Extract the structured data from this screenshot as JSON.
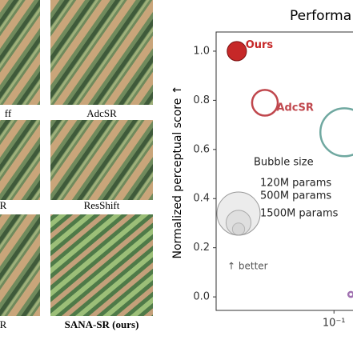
{
  "panels": [
    {
      "label": "ff"
    },
    {
      "label": "AdcSR"
    },
    {
      "label": "R"
    },
    {
      "label": "ResShift"
    },
    {
      "label": "R"
    },
    {
      "label": "SANA-SR (ours)"
    }
  ],
  "chart_data": {
    "type": "scatter",
    "title": "Performa",
    "ylabel": "Normalized perceptual score ↑",
    "log_x": true,
    "grid": false,
    "xlim": [
      0.0105,
      0.3
    ],
    "ylim": [
      -0.055,
      1.078
    ],
    "xticks": [
      {
        "value": 0.1,
        "label": "10⁻¹"
      }
    ],
    "yticks": [
      {
        "value": 0,
        "label": "0.0"
      },
      0.2,
      0.4,
      0.6,
      0.8,
      {
        "value": 1,
        "label": "1.0"
      }
    ],
    "series": [
      {
        "name": "Ours",
        "color": "#c62828",
        "filled": true,
        "x": [
          0.0156
        ],
        "values": [
          1.0
        ],
        "sizes": [
          300
        ]
      },
      {
        "name": "AdcSR",
        "color": "#c0474d",
        "filled": false,
        "x": [
          0.0267
        ],
        "values": [
          0.79
        ],
        "sizes": [
          530
        ]
      },
      {
        "name": null,
        "color": "#6fa8a0",
        "filled": false,
        "x": [
          0.122
        ],
        "values": [
          0.67
        ],
        "sizes": [
          1850
        ]
      },
      {
        "name": null,
        "color": "#a070b0",
        "filled": false,
        "x": [
          0.138
        ],
        "values": [
          0.01
        ],
        "sizes": [
          20
        ]
      }
    ],
    "size_legend": {
      "title": "Bubble size",
      "entries": [
        {
          "value": 120,
          "label": "120M params"
        },
        {
          "value": 500,
          "label": "500M params"
        },
        {
          "value": 1500,
          "label": "1500M params"
        }
      ]
    },
    "annotation": "↑ better"
  }
}
